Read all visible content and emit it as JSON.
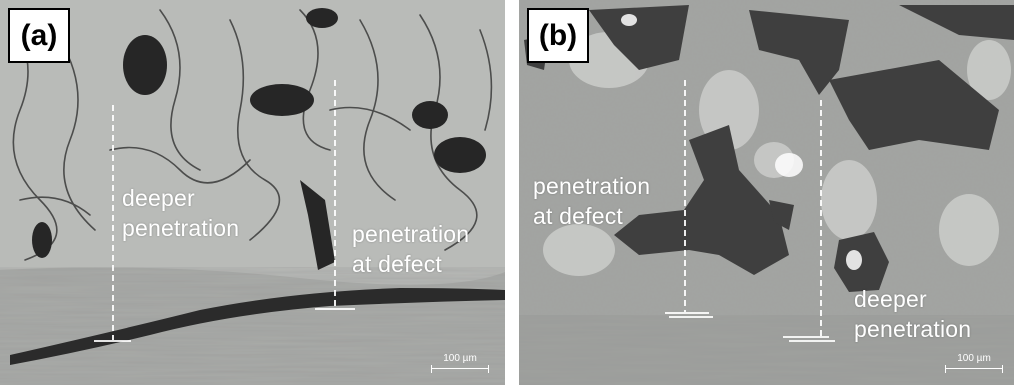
{
  "panels": [
    {
      "label": "(a)",
      "annotations": [
        "deeper",
        "penetration",
        "penetration",
        "at defect"
      ],
      "scale_bar": "100 µm"
    },
    {
      "label": "(b)",
      "annotations": [
        "penetration",
        "at defect",
        "deeper",
        "penetration"
      ],
      "scale_bar": "100 µm"
    }
  ]
}
